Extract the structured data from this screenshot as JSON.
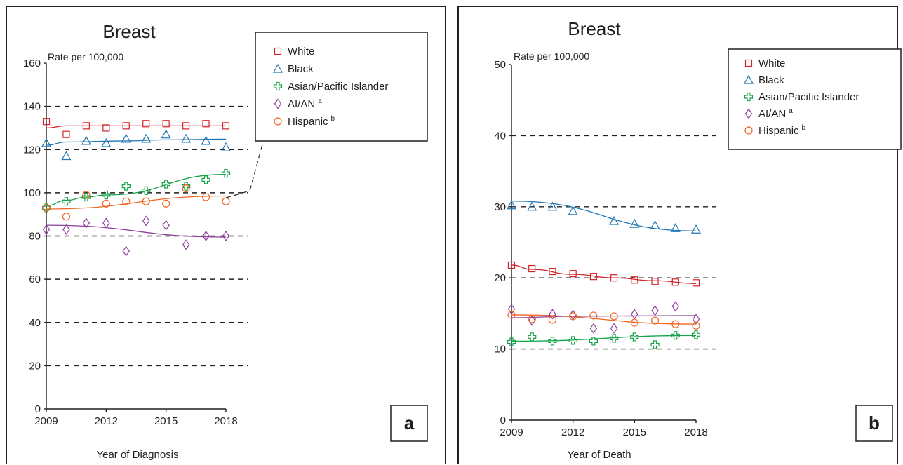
{
  "chart_data": [
    {
      "type": "scatter",
      "title": "Breast",
      "ylabel": "Rate per 100,000",
      "xlabel": "Year of Diagnosis",
      "panel_label": "a",
      "xlim": [
        2009,
        2018
      ],
      "ylim": [
        0,
        160
      ],
      "x_ticks": [
        2009,
        2012,
        2015,
        2018
      ],
      "y_ticks": [
        0,
        20,
        40,
        60,
        80,
        100,
        120,
        140,
        160
      ],
      "gridlines": "dashed horizontal",
      "legend": "top-right",
      "x": [
        2009,
        2010,
        2011,
        2012,
        2013,
        2014,
        2015,
        2016,
        2017,
        2018
      ],
      "series": [
        {
          "name": "White",
          "sup": "",
          "color": "#d2232a",
          "marker": "square",
          "values": [
            133,
            127,
            131,
            130,
            131,
            132,
            132,
            131,
            132,
            131
          ],
          "trend": [
            [
              2009,
              130
            ],
            [
              2010,
              131
            ],
            [
              2012,
              131
            ],
            [
              2018,
              131
            ]
          ]
        },
        {
          "name": "Black",
          "sup": "",
          "color": "#1f78b4",
          "marker": "triangle",
          "values": [
            123,
            117,
            124,
            123,
            125,
            125,
            127,
            125,
            124,
            121
          ],
          "trend": [
            [
              2009,
              122
            ],
            [
              2010,
              123.5
            ],
            [
              2013,
              124
            ],
            [
              2015,
              124.5
            ],
            [
              2018,
              124.8
            ]
          ]
        },
        {
          "name": "Asian/Pacific Islander",
          "sup": "",
          "color": "#16a34a",
          "marker": "cross",
          "values": [
            93,
            96,
            98,
            99,
            103,
            101,
            104,
            103,
            106,
            109
          ],
          "trend": [
            [
              2009,
              94
            ],
            [
              2010,
              96.5
            ],
            [
              2011,
              98
            ],
            [
              2012,
              99
            ],
            [
              2018,
              108.5
            ]
          ]
        },
        {
          "name": "AI/AN",
          "sup": "a",
          "color": "#8e3e9c",
          "marker": "diamond",
          "values": [
            83,
            83,
            86,
            86,
            73,
            87,
            85,
            76,
            80,
            80
          ],
          "trend": [
            [
              2009,
              85
            ],
            [
              2018,
              79.5
            ]
          ]
        },
        {
          "name": "Hispanic",
          "sup": "b",
          "color": "#f26522",
          "marker": "circle",
          "values": [
            93,
            89,
            99,
            95,
            96,
            96,
            95,
            102,
            98,
            96
          ],
          "trend": [
            [
              2009,
              92.5
            ],
            [
              2018,
              98.5
            ]
          ]
        }
      ]
    },
    {
      "type": "scatter",
      "title": "Breast",
      "ylabel": "Rate per 100,000",
      "xlabel": "Year of Death",
      "panel_label": "b",
      "xlim": [
        2009,
        2018
      ],
      "ylim": [
        0,
        50
      ],
      "x_ticks": [
        2009,
        2012,
        2015,
        2018
      ],
      "y_ticks": [
        0,
        10,
        20,
        30,
        40,
        50
      ],
      "gridlines": "dashed horizontal",
      "legend": "top-right",
      "x": [
        2009,
        2010,
        2011,
        2012,
        2013,
        2014,
        2015,
        2016,
        2017,
        2018
      ],
      "series": [
        {
          "name": "White",
          "sup": "",
          "color": "#d2232a",
          "marker": "square",
          "values": [
            21.8,
            21.3,
            20.9,
            20.6,
            20.2,
            20.0,
            19.7,
            19.5,
            19.4,
            19.3
          ],
          "trend": [
            [
              2009,
              21.8
            ],
            [
              2010,
              21.2
            ],
            [
              2012,
              20.5
            ],
            [
              2014,
              20.0
            ],
            [
              2016,
              19.6
            ],
            [
              2018,
              19.2
            ]
          ]
        },
        {
          "name": "Black",
          "sup": "",
          "color": "#1f78b4",
          "marker": "triangle",
          "values": [
            30.2,
            30.0,
            30.0,
            29.4,
            null,
            28.0,
            27.6,
            27.4,
            27.0,
            26.8
          ],
          "trend": [
            [
              2009,
              30.8
            ],
            [
              2018,
              26.6
            ]
          ]
        },
        {
          "name": "Asian/Pacific Islander",
          "sup": "",
          "color": "#16a34a",
          "marker": "cross",
          "values": [
            11.0,
            11.7,
            11.1,
            11.2,
            11.1,
            11.5,
            11.7,
            10.6,
            11.9,
            12.0
          ],
          "trend": [
            [
              2009,
              11.1
            ],
            [
              2018,
              11.9
            ]
          ]
        },
        {
          "name": "AI/AN",
          "sup": "a",
          "color": "#8e3e9c",
          "marker": "diamond",
          "values": [
            15.6,
            14.0,
            14.9,
            14.8,
            12.9,
            12.9,
            14.9,
            15.4,
            16.0,
            14.2
          ],
          "trend": [
            [
              2009,
              14.4
            ],
            [
              2012,
              14.6
            ],
            [
              2018,
              14.7
            ]
          ]
        },
        {
          "name": "Hispanic",
          "sup": "b",
          "color": "#f26522",
          "marker": "circle",
          "values": [
            14.8,
            14.2,
            14.1,
            14.6,
            14.7,
            14.6,
            13.7,
            14.0,
            13.5,
            13.3
          ],
          "trend": [
            [
              2009,
              14.8
            ],
            [
              2018,
              13.5
            ]
          ]
        }
      ]
    }
  ]
}
